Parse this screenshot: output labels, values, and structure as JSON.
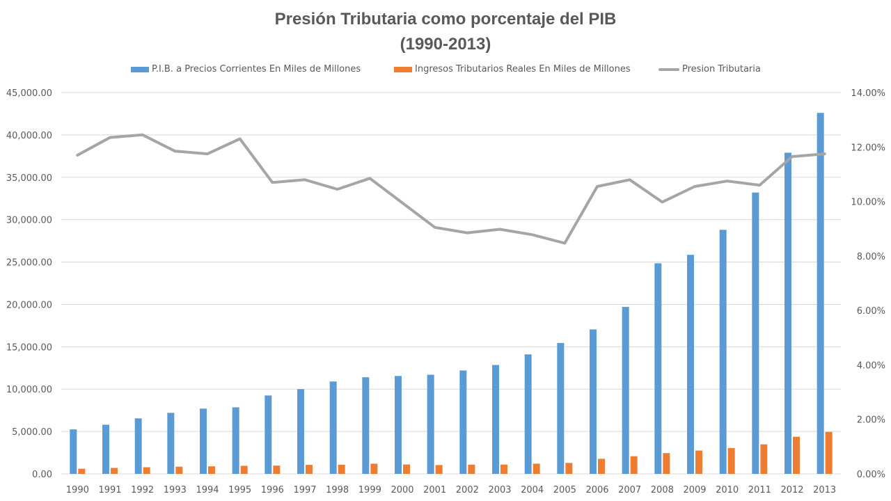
{
  "chart_data": {
    "type": "bar",
    "title": "Presión Tributaria como porcentaje del PIB",
    "subtitle": "(1990-2013)",
    "categories": [
      "1990",
      "1991",
      "1992",
      "1993",
      "1994",
      "1995",
      "1996",
      "1997",
      "1998",
      "1999",
      "2000",
      "2001",
      "2002",
      "2003",
      "2004",
      "2005",
      "2006",
      "2007",
      "2008",
      "2009",
      "2010",
      "2011",
      "2012",
      "2013"
    ],
    "series": [
      {
        "name": "P.I.B. a Precios Corrientes En Miles de Millones",
        "type": "bar",
        "axis": "left",
        "color": "#5B9BD5",
        "values": [
          5250,
          5800,
          6550,
          7200,
          7700,
          7850,
          9250,
          10000,
          10900,
          11400,
          11550,
          11700,
          12200,
          12850,
          14100,
          15450,
          17050,
          19700,
          24850,
          25850,
          28800,
          33200,
          37900,
          42600
        ]
      },
      {
        "name": "Ingresos Tributarios Reales En Miles de Millones",
        "type": "bar",
        "axis": "left",
        "color": "#ED7D31",
        "values": [
          610,
          700,
          780,
          850,
          890,
          950,
          970,
          1060,
          1080,
          1200,
          1110,
          1040,
          1090,
          1100,
          1200,
          1290,
          1780,
          2080,
          2450,
          2750,
          3050,
          3480,
          4380,
          4950
        ]
      },
      {
        "name": "Presion Tributaria",
        "type": "line",
        "axis": "right",
        "color": "#A5A5A5",
        "values": [
          11.7,
          12.35,
          12.45,
          11.85,
          11.75,
          12.3,
          10.7,
          10.8,
          10.45,
          10.85,
          9.95,
          9.05,
          8.85,
          8.98,
          8.78,
          8.47,
          10.55,
          10.8,
          9.98,
          10.55,
          10.75,
          10.6,
          11.65,
          11.75
        ]
      }
    ],
    "ylim": [
      0,
      45000
    ],
    "y_ticks": [
      "0.00",
      "5,000.00",
      "10,000.00",
      "15,000.00",
      "20,000.00",
      "25,000.00",
      "30,000.00",
      "35,000.00",
      "40,000.00",
      "45,000.00"
    ],
    "y2lim": [
      0,
      14
    ],
    "y2_ticks": [
      "0.00%",
      "2.00%",
      "4.00%",
      "6.00%",
      "8.00%",
      "10.00%",
      "12.00%",
      "14.00%"
    ],
    "xlabel": "",
    "ylabel": "",
    "grid": true,
    "legend_position": "top"
  }
}
